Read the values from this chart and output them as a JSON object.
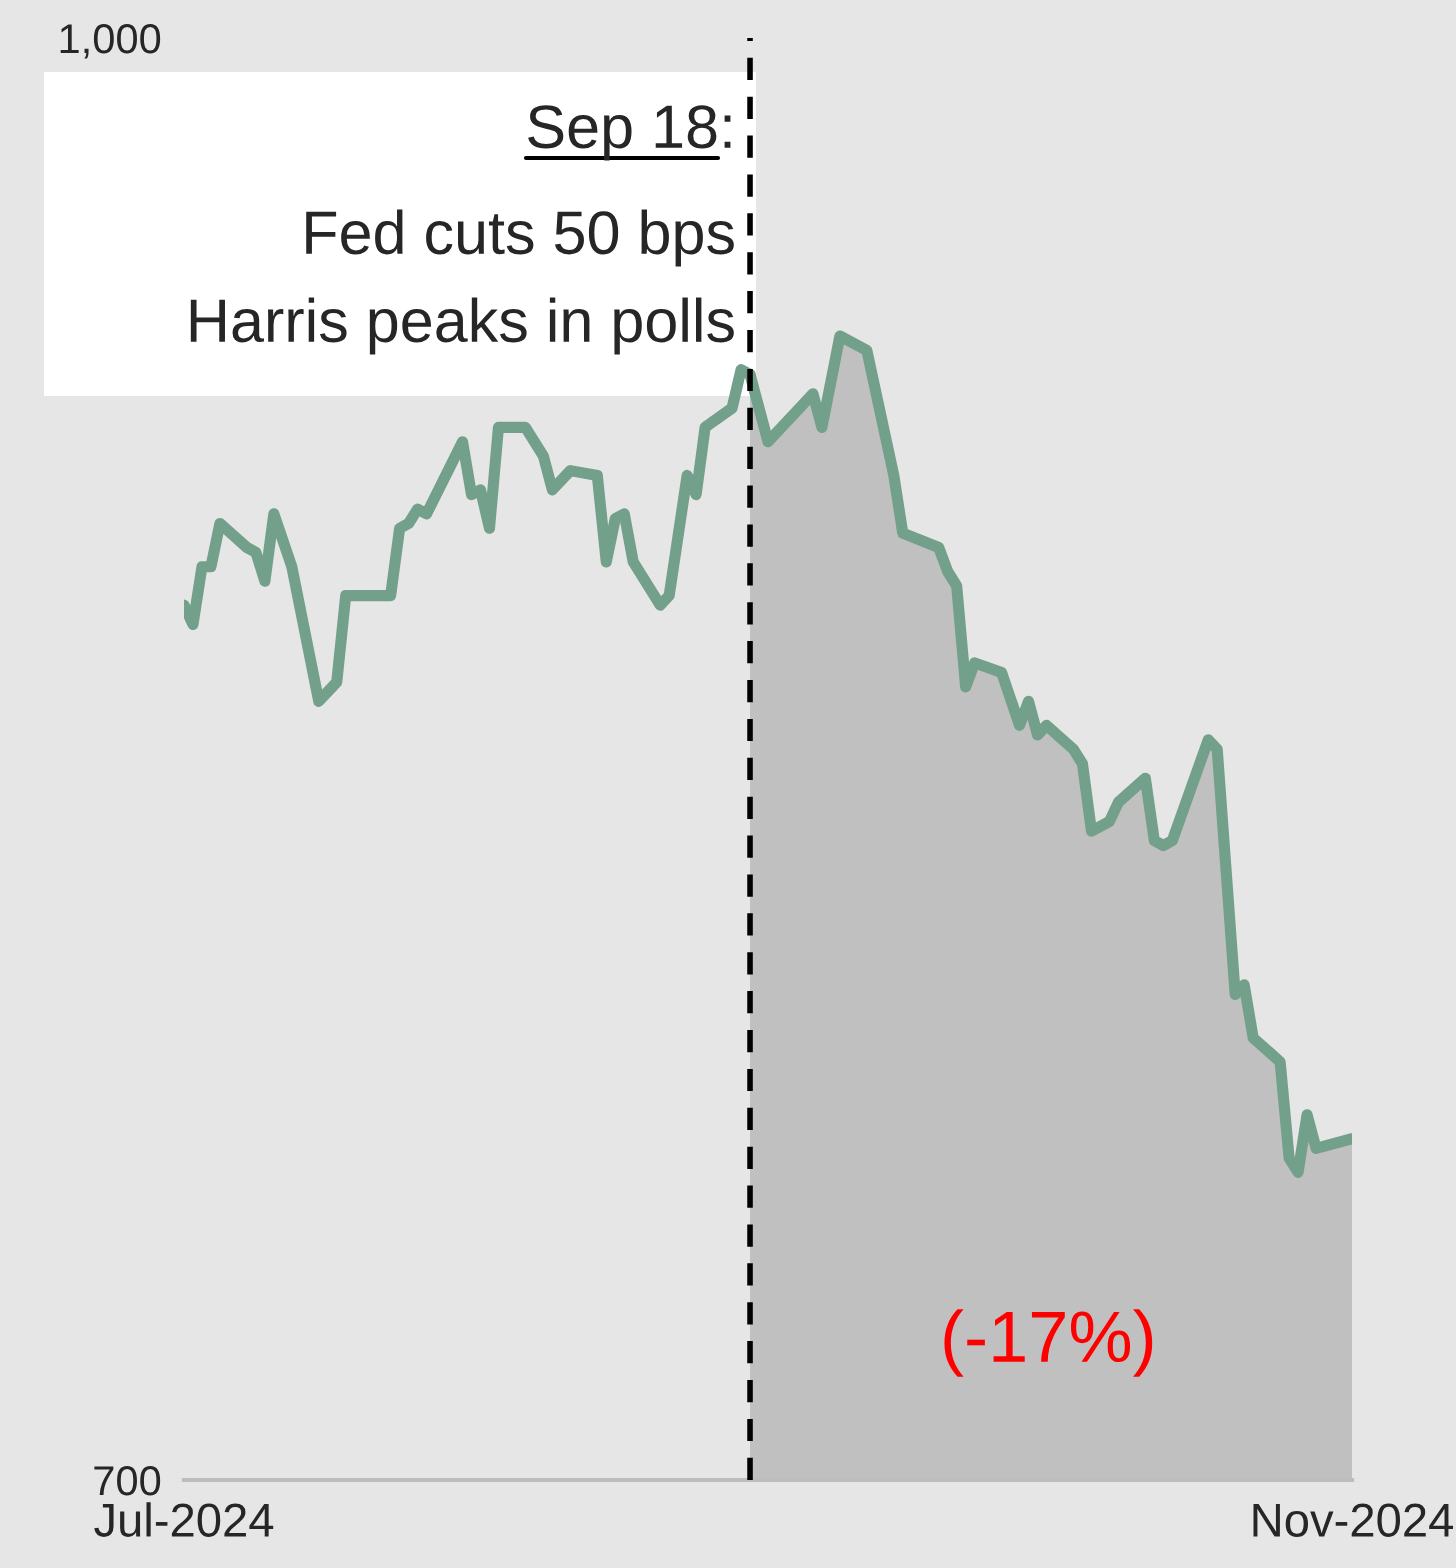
{
  "chart_data": {
    "type": "line",
    "xlim": [
      "2024-07-17",
      "2024-11-24"
    ],
    "xticks": [
      {
        "value": "2024-07-17",
        "label": "Jul-2024"
      },
      {
        "value": "2024-11-24",
        "label": "Nov-2024"
      }
    ],
    "ylim": [
      700,
      1000
    ],
    "yticks": [
      700,
      {
        "value": 1000,
        "label": "1,000"
      }
    ],
    "grid": false,
    "series": [
      {
        "type": "line",
        "color": "#72a08a",
        "x": [
          "2024-07-17",
          "2024-07-18",
          "2024-07-19",
          "2024-07-20",
          "2024-07-21",
          "2024-07-24",
          "2024-07-25",
          "2024-07-26",
          "2024-07-27",
          "2024-07-29",
          "2024-08-01",
          "2024-08-03",
          "2024-08-04",
          "2024-08-09",
          "2024-08-10",
          "2024-08-11",
          "2024-08-12",
          "2024-08-13",
          "2024-08-17",
          "2024-08-18",
          "2024-08-19",
          "2024-08-20",
          "2024-08-21",
          "2024-08-24",
          "2024-08-26",
          "2024-08-27",
          "2024-08-29",
          "2024-09-01",
          "2024-09-02",
          "2024-09-03",
          "2024-09-04",
          "2024-09-05",
          "2024-09-08",
          "2024-09-09",
          "2024-09-11",
          "2024-09-12",
          "2024-09-13",
          "2024-09-16",
          "2024-09-17",
          "2024-09-18"
        ],
        "values": [
          882,
          878,
          890,
          890,
          899,
          894,
          893,
          887,
          901,
          890,
          862,
          866,
          884,
          884,
          898,
          899,
          902,
          901,
          916,
          905,
          906,
          898,
          919,
          919,
          913,
          906,
          910,
          909,
          891,
          900,
          901,
          891,
          882,
          884,
          909,
          905,
          919,
          923,
          931,
          930
        ]
      },
      {
        "type": "area",
        "color": "#72a08a",
        "x": [
          "2024-09-18",
          "2024-09-20",
          "2024-09-25",
          "2024-09-26",
          "2024-09-28",
          "2024-10-01",
          "2024-10-04",
          "2024-10-05",
          "2024-10-09",
          "2024-10-10",
          "2024-10-11",
          "2024-10-12",
          "2024-10-13",
          "2024-10-16",
          "2024-10-18",
          "2024-10-19",
          "2024-10-20",
          "2024-10-21",
          "2024-10-24",
          "2024-10-25",
          "2024-10-26",
          "2024-10-28",
          "2024-10-29",
          "2024-11-01",
          "2024-11-02",
          "2024-11-03",
          "2024-11-04",
          "2024-11-08",
          "2024-11-09",
          "2024-11-11",
          "2024-11-12",
          "2024-11-13",
          "2024-11-16",
          "2024-11-17",
          "2024-11-18",
          "2024-11-19",
          "2024-11-20",
          "2024-11-24"
        ],
        "values": [
          930,
          916,
          926,
          919,
          938,
          935,
          909,
          897,
          894,
          889,
          886,
          865,
          870,
          868,
          857,
          862,
          855,
          857,
          852,
          849,
          835,
          837,
          841,
          846,
          833,
          832,
          833,
          854,
          852,
          801,
          803,
          792,
          787,
          767,
          764,
          776,
          769,
          771
        ]
      }
    ],
    "ref_lines": [
      {
        "axis": "x",
        "value": "2024-09-18",
        "label": "Sep 18:",
        "color": "#000000",
        "line_style": "dashed"
      }
    ],
    "annotations": [
      "Fed cuts 50 bps",
      "Harris peaks in polls",
      "(-17%)"
    ]
  }
}
